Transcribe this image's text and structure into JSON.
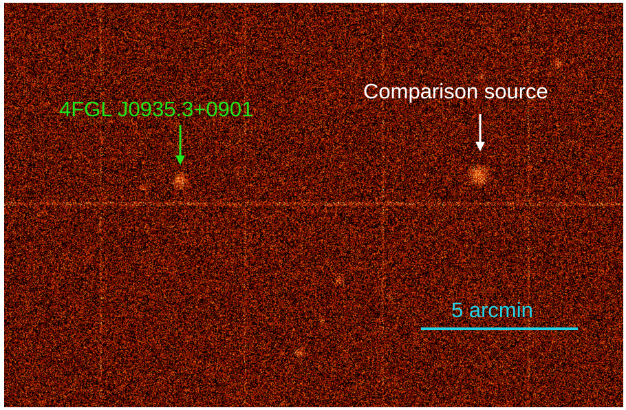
{
  "image": {
    "description_colors": {
      "background": "#000000",
      "noise_dark": "#7a0a00",
      "noise_mid": "#c62a00",
      "noise_bright": "#ff7a10",
      "hot": "#ffe680"
    }
  },
  "annotations": {
    "target": {
      "label": "4FGL J0935.3+0901",
      "color": "#1ee61e"
    },
    "comparison": {
      "label": "Comparison source",
      "color": "#ffffff"
    },
    "scale_bar": {
      "label": "5 arcmin",
      "color": "#22d3e6"
    }
  }
}
